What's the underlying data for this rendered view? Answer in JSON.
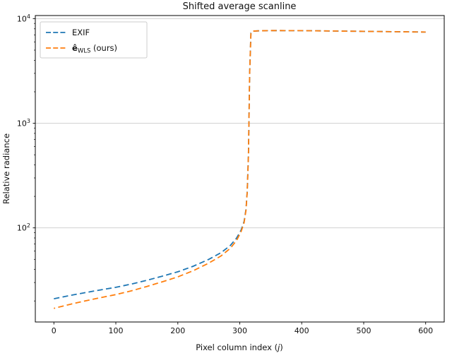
{
  "figure": {
    "title": "Shifted average scanline",
    "xlabel_prefix": "Pixel column index (",
    "xlabel_var": "j",
    "xlabel_suffix": ")",
    "ylabel": "Relative radiance"
  },
  "legend": {
    "position": "upper left",
    "items": [
      {
        "label": "EXIF",
        "color": "#1f77b4",
        "line_style": "dashed"
      },
      {
        "label": "ê_WLS (ours)",
        "label_prefix": "ê",
        "label_sub": "WLS",
        "label_suffix": " (ours)",
        "color": "#ff7f0e",
        "line_style": "dashed"
      }
    ]
  },
  "axes": {
    "x_tick_labels": [
      "0",
      "100",
      "200",
      "300",
      "400",
      "500",
      "600"
    ],
    "y_tick_base": "10",
    "y_tick_exponents": [
      "2",
      "3",
      "4"
    ]
  },
  "chart_data": {
    "type": "line",
    "title": "Shifted average scanline",
    "xlabel": "Pixel column index (j)",
    "ylabel": "Relative radiance",
    "y_scale": "log",
    "grid": "horizontal-major",
    "grid_color": "#cccccc",
    "legend_position": "upper left",
    "line_style": "dashed",
    "xlim": [
      -30,
      630
    ],
    "ylim_log10": [
      1.1,
      4.03
    ],
    "x_ticks": [
      0,
      100,
      200,
      300,
      400,
      500,
      600
    ],
    "y_major_ticks": [
      100,
      1000,
      10000
    ],
    "x": [
      0,
      25,
      50,
      75,
      100,
      125,
      150,
      175,
      200,
      225,
      250,
      270,
      285,
      295,
      302,
      307,
      310,
      312,
      314,
      316,
      318,
      321,
      330,
      350,
      400,
      450,
      500,
      550,
      600
    ],
    "series": [
      {
        "name": "EXIF",
        "color": "#1f77b4",
        "values": [
          21,
          22.5,
          24,
          25.5,
          27,
          29,
          31.5,
          34.5,
          38,
          43,
          50,
          58,
          68,
          80,
          95,
          115,
          150,
          220,
          500,
          3000,
          7300,
          7600,
          7650,
          7700,
          7680,
          7620,
          7560,
          7500,
          7450
        ]
      },
      {
        "name": "ê_WLS (ours)",
        "color": "#ff7f0e",
        "values": [
          17,
          18.5,
          20,
          21.5,
          23,
          25,
          27.5,
          30.5,
          34,
          39,
          46,
          54,
          64,
          76,
          92,
          112,
          147,
          218,
          500,
          3000,
          7300,
          7600,
          7650,
          7700,
          7680,
          7620,
          7560,
          7500,
          7450
        ]
      }
    ]
  }
}
